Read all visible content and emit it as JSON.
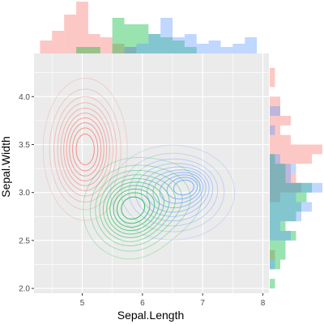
{
  "chart_data": {
    "type": "scatter",
    "subtype": "marginal-histogram-with-2d-density-contours",
    "title": "",
    "xlabel": "Sepal.Length",
    "ylabel": "Sepal.Width",
    "xlim": [
      4.2,
      8.1
    ],
    "ylim": [
      1.95,
      4.45
    ],
    "x_ticks": [
      5,
      6,
      7,
      8
    ],
    "x_tick_labels": [
      "5",
      "6",
      "7",
      "8"
    ],
    "y_ticks": [
      2.0,
      2.5,
      3.0,
      3.5,
      4.0
    ],
    "y_tick_labels": [
      "2.0",
      "2.5",
      "3.0",
      "3.5",
      "4.0"
    ],
    "grid": true,
    "legend": "none",
    "panel_background": "#ebebeb",
    "series": [
      {
        "color": "#F8766D",
        "density_centers": [
          {
            "x": 5.05,
            "y": 3.45,
            "sx": 0.32,
            "sy": 0.34,
            "weight": 1.0
          }
        ],
        "x_hist": [
          {
            "x0": 4.3,
            "x1": 4.5,
            "count": 4
          },
          {
            "x0": 4.5,
            "x1": 4.7,
            "count": 7
          },
          {
            "x0": 4.7,
            "x1": 4.9,
            "count": 12
          },
          {
            "x0": 4.9,
            "x1": 5.1,
            "count": 16
          },
          {
            "x0": 5.1,
            "x1": 5.3,
            "count": 6
          },
          {
            "x0": 5.3,
            "x1": 5.5,
            "count": 5
          },
          {
            "x0": 5.5,
            "x1": 5.7,
            "count": 3
          },
          {
            "x0": 5.7,
            "x1": 5.9,
            "count": 2
          }
        ],
        "y_hist": [
          {
            "y0": 2.3,
            "y1": 2.4,
            "count": 1
          },
          {
            "y0": 2.9,
            "y1": 3.0,
            "count": 2
          },
          {
            "y0": 3.0,
            "y1": 3.1,
            "count": 6
          },
          {
            "y0": 3.1,
            "y1": 3.2,
            "count": 5
          },
          {
            "y0": 3.2,
            "y1": 3.3,
            "count": 4
          },
          {
            "y0": 3.3,
            "y1": 3.4,
            "count": 8
          },
          {
            "y0": 3.4,
            "y1": 3.5,
            "count": 10
          },
          {
            "y0": 3.5,
            "y1": 3.6,
            "count": 4
          },
          {
            "y0": 3.6,
            "y1": 3.7,
            "count": 2
          },
          {
            "y0": 3.7,
            "y1": 3.8,
            "count": 4
          },
          {
            "y0": 3.8,
            "y1": 3.9,
            "count": 2
          },
          {
            "y0": 3.9,
            "y1": 4.0,
            "count": 2
          },
          {
            "y0": 4.1,
            "y1": 4.2,
            "count": 1
          },
          {
            "y0": 4.2,
            "y1": 4.3,
            "count": 1
          }
        ]
      },
      {
        "color": "#00BA38",
        "density_centers": [
          {
            "x": 5.78,
            "y": 2.82,
            "sx": 0.36,
            "sy": 0.24,
            "weight": 1.0
          },
          {
            "x": 6.35,
            "y": 2.95,
            "sx": 0.4,
            "sy": 0.22,
            "weight": 0.35
          }
        ],
        "x_hist": [
          {
            "x0": 4.9,
            "x1": 5.1,
            "count": 2
          },
          {
            "x0": 5.1,
            "x1": 5.3,
            "count": 2
          },
          {
            "x0": 5.5,
            "x1": 5.7,
            "count": 11
          },
          {
            "x0": 5.7,
            "x1": 5.9,
            "count": 9
          },
          {
            "x0": 5.9,
            "x1": 6.1,
            "count": 9
          },
          {
            "x0": 6.1,
            "x1": 6.3,
            "count": 6
          },
          {
            "x0": 6.3,
            "x1": 6.5,
            "count": 5
          },
          {
            "x0": 6.5,
            "x1": 6.7,
            "count": 4
          },
          {
            "x0": 6.7,
            "x1": 6.9,
            "count": 2
          }
        ],
        "y_hist": [
          {
            "y0": 2.0,
            "y1": 2.1,
            "count": 1
          },
          {
            "y0": 2.2,
            "y1": 2.3,
            "count": 2
          },
          {
            "y0": 2.3,
            "y1": 2.4,
            "count": 3
          },
          {
            "y0": 2.4,
            "y1": 2.5,
            "count": 3
          },
          {
            "y0": 2.5,
            "y1": 2.6,
            "count": 5
          },
          {
            "y0": 2.6,
            "y1": 2.7,
            "count": 3
          },
          {
            "y0": 2.7,
            "y1": 2.8,
            "count": 5
          },
          {
            "y0": 2.8,
            "y1": 2.9,
            "count": 6
          },
          {
            "y0": 2.9,
            "y1": 3.0,
            "count": 7
          },
          {
            "y0": 3.0,
            "y1": 3.1,
            "count": 8
          },
          {
            "y0": 3.1,
            "y1": 3.2,
            "count": 3
          },
          {
            "y0": 3.2,
            "y1": 3.3,
            "count": 3
          },
          {
            "y0": 3.3,
            "y1": 3.4,
            "count": 1
          }
        ]
      },
      {
        "color": "#619CFF",
        "density_centers": [
          {
            "x": 6.5,
            "y": 3.0,
            "sx": 0.5,
            "sy": 0.24,
            "weight": 1.0
          },
          {
            "x": 6.78,
            "y": 3.08,
            "sx": 0.2,
            "sy": 0.1,
            "weight": 0.45
          }
        ],
        "x_hist": [
          {
            "x0": 5.7,
            "x1": 5.9,
            "count": 2
          },
          {
            "x0": 5.9,
            "x1": 6.1,
            "count": 3
          },
          {
            "x0": 6.1,
            "x1": 6.3,
            "count": 6
          },
          {
            "x0": 6.3,
            "x1": 6.5,
            "count": 11
          },
          {
            "x0": 6.5,
            "x1": 6.7,
            "count": 5
          },
          {
            "x0": 6.7,
            "x1": 6.9,
            "count": 6
          },
          {
            "x0": 6.9,
            "x1": 7.1,
            "count": 3
          },
          {
            "x0": 7.1,
            "x1": 7.3,
            "count": 4
          },
          {
            "x0": 7.3,
            "x1": 7.5,
            "count": 2
          },
          {
            "x0": 7.5,
            "x1": 7.7,
            "count": 3
          },
          {
            "x0": 7.7,
            "x1": 7.9,
            "count": 5
          }
        ],
        "y_hist": [
          {
            "y0": 2.2,
            "y1": 2.3,
            "count": 1
          },
          {
            "y0": 2.5,
            "y1": 2.6,
            "count": 4
          },
          {
            "y0": 2.6,
            "y1": 2.7,
            "count": 2
          },
          {
            "y0": 2.7,
            "y1": 2.8,
            "count": 6
          },
          {
            "y0": 2.8,
            "y1": 2.9,
            "count": 8
          },
          {
            "y0": 2.9,
            "y1": 3.0,
            "count": 5
          },
          {
            "y0": 3.0,
            "y1": 3.1,
            "count": 10
          },
          {
            "y0": 3.1,
            "y1": 3.2,
            "count": 4
          },
          {
            "y0": 3.2,
            "y1": 3.3,
            "count": 5
          },
          {
            "y0": 3.3,
            "y1": 3.4,
            "count": 2
          },
          {
            "y0": 3.6,
            "y1": 3.7,
            "count": 1
          },
          {
            "y0": 3.8,
            "y1": 3.9,
            "count": 2
          }
        ]
      }
    ]
  }
}
